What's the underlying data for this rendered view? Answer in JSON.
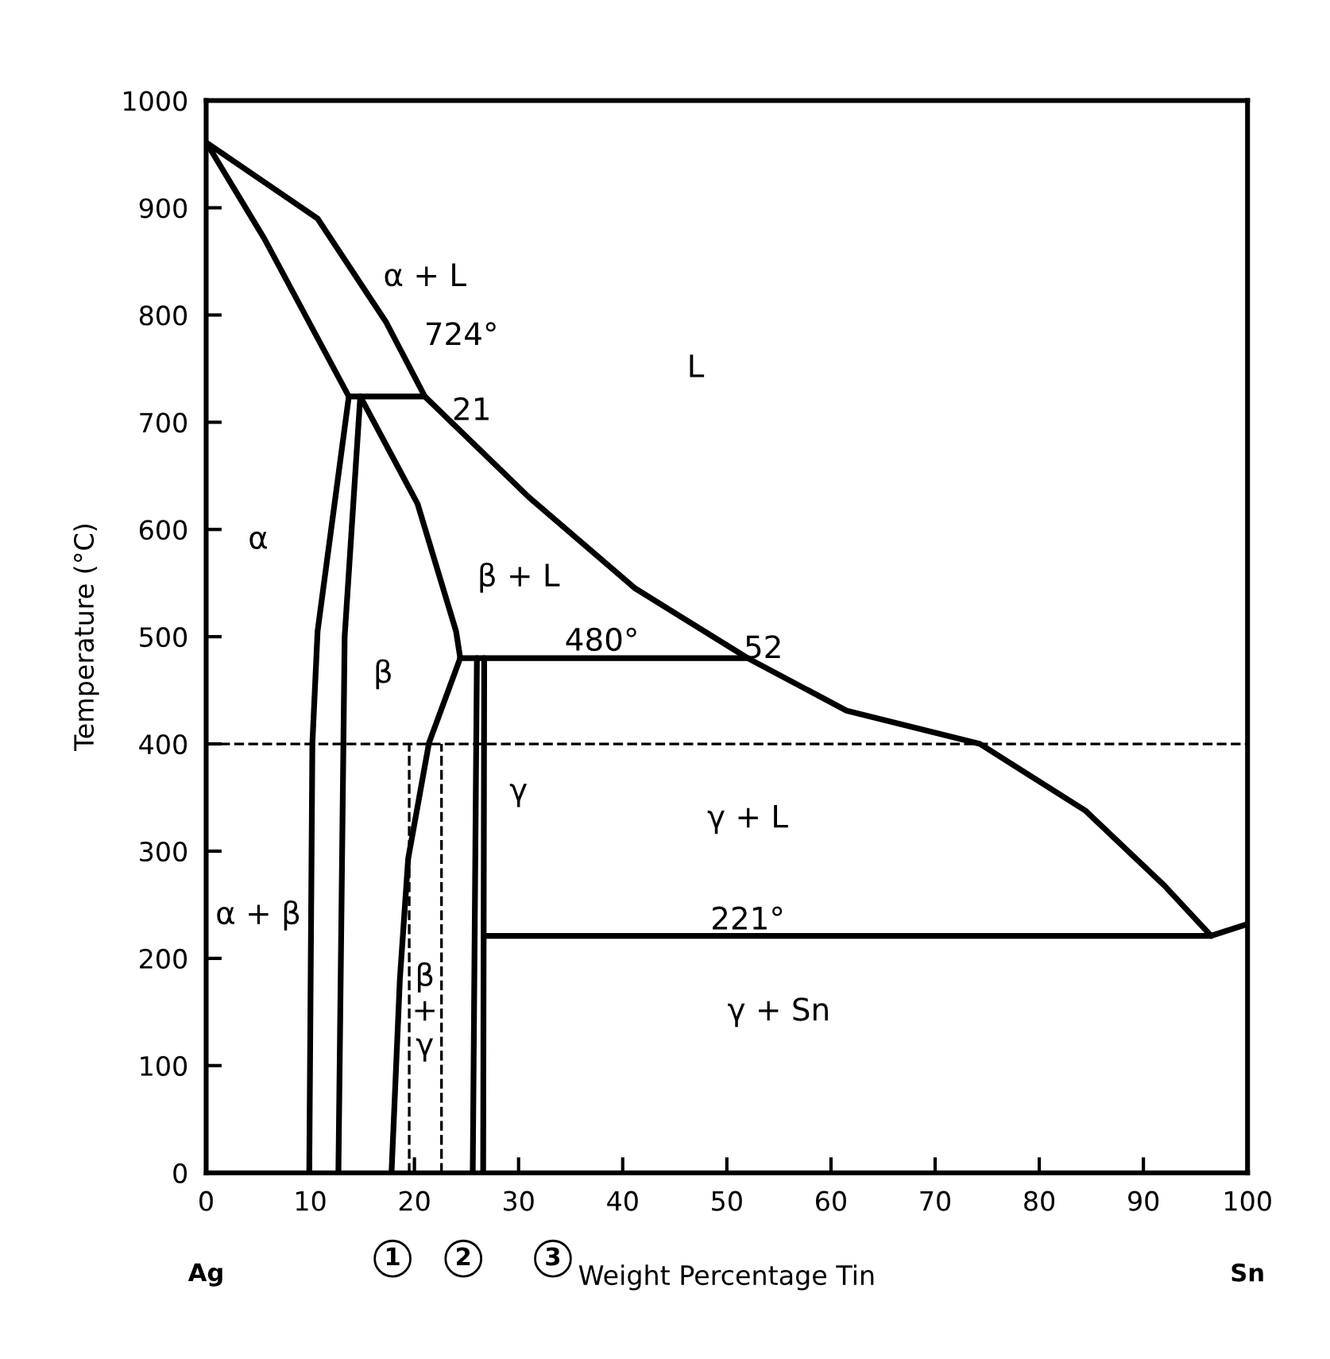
{
  "chart_data": {
    "type": "line",
    "xlabel": "Weight Percentage Tin",
    "ylabel": "Temperature (°C)",
    "xlim": [
      0,
      100
    ],
    "ylim": [
      0,
      1000
    ],
    "xticks": [
      0,
      10,
      20,
      30,
      40,
      50,
      60,
      70,
      80,
      90,
      100
    ],
    "yticks": [
      0,
      100,
      200,
      300,
      400,
      500,
      600,
      700,
      800,
      900,
      1000
    ],
    "grid": false,
    "legend": false,
    "marker": "none",
    "series": [
      {
        "color": "#000000",
        "line_style": "solid",
        "x": [
          0,
          10.7,
          17.3,
          21,
          31,
          41.2,
          52,
          61.5,
          74.3,
          84.4,
          92,
          96.5
        ],
        "values": [
          961,
          890,
          793,
          724,
          630,
          545,
          480,
          431,
          400,
          338,
          268,
          221
        ]
      },
      {
        "color": "#000000",
        "line_style": "solid",
        "x": [
          0,
          5.6,
          13.7
        ],
        "values": [
          961,
          871,
          724
        ]
      },
      {
        "color": "#000000",
        "line_style": "solid",
        "x": [
          13.7,
          21
        ],
        "values": [
          724,
          724
        ]
      },
      {
        "color": "#000000",
        "line_style": "solid",
        "x": [
          13.7,
          10.7,
          10.2,
          9.9
        ],
        "values": [
          724,
          505,
          400,
          0
        ]
      },
      {
        "color": "#000000",
        "line_style": "solid",
        "x": [
          14.8,
          13.3,
          12.7
        ],
        "values": [
          724,
          500,
          0
        ]
      },
      {
        "color": "#000000",
        "line_style": "solid",
        "x": [
          14.8,
          20.3,
          24,
          24.4
        ],
        "values": [
          724,
          624,
          505,
          480
        ]
      },
      {
        "color": "#000000",
        "line_style": "solid",
        "x": [
          24.4,
          21.4,
          19.4,
          18.6,
          17.8
        ],
        "values": [
          480,
          401,
          293,
          180,
          0
        ]
      },
      {
        "color": "#000000",
        "line_style": "solid",
        "x": [
          24.4,
          52
        ],
        "values": [
          480,
          480
        ]
      },
      {
        "color": "#000000",
        "line_style": "solid",
        "x": [
          26,
          25.6
        ],
        "values": [
          480,
          0
        ]
      },
      {
        "color": "#000000",
        "line_style": "solid",
        "x": [
          26.7,
          26.6
        ],
        "values": [
          480,
          0
        ]
      },
      {
        "color": "#000000",
        "line_style": "solid",
        "x": [
          26.7,
          96.5,
          100
        ],
        "values": [
          221,
          221,
          232
        ]
      },
      {
        "color": "#000000",
        "line_style": "dashed",
        "x": [
          19.5,
          19.5
        ],
        "values": [
          0,
          400
        ]
      },
      {
        "color": "#000000",
        "line_style": "dashed",
        "x": [
          22.6,
          22.6
        ],
        "values": [
          0,
          400
        ]
      }
    ],
    "ref_lines": [
      {
        "axis": "y",
        "value": 400,
        "color": "#000000",
        "line_style": "dashed"
      }
    ],
    "annotations": [
      "α + L",
      "724°",
      "21",
      "L",
      "α",
      "β + L",
      "480°",
      "52",
      "β",
      "γ",
      "γ + L",
      "α + β",
      "β\n+\nγ",
      "221°",
      "γ + Sn",
      "1",
      "2",
      "3",
      "Ag",
      "Sn"
    ]
  }
}
